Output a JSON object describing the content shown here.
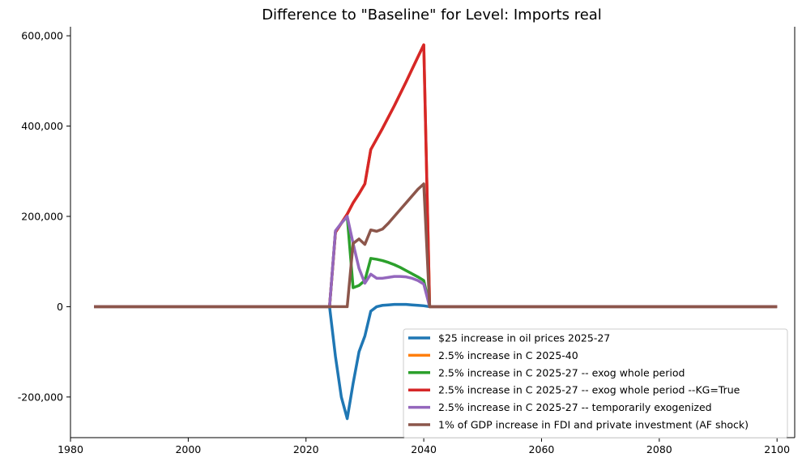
{
  "chart_data": {
    "type": "line",
    "title": "Difference to \"Baseline\" for Level: Imports real",
    "xlabel": "",
    "ylabel": "",
    "xlim": [
      1980,
      2103
    ],
    "ylim": [
      -290000,
      620000
    ],
    "xticks": [
      1980,
      2000,
      2020,
      2040,
      2060,
      2080,
      2100
    ],
    "xtick_labels": [
      "1980",
      "2000",
      "2020",
      "2040",
      "2060",
      "2080",
      "2100"
    ],
    "yticks": [
      -200000,
      0,
      200000,
      400000,
      600000
    ],
    "ytick_labels": [
      "-200,000",
      "0",
      "200,000",
      "400,000",
      "600,000"
    ],
    "grid": false,
    "legend_position": "lower-right",
    "series": [
      {
        "name": "$25 increase in oil prices 2025-27",
        "color": "#1f77b4",
        "x": [
          1984,
          2023,
          2024,
          2025,
          2026,
          2027,
          2028,
          2029,
          2030,
          2031,
          2032,
          2033,
          2034,
          2035,
          2036,
          2037,
          2038,
          2039,
          2040,
          2041,
          2100
        ],
        "y": [
          0,
          0,
          0,
          -110000,
          -200000,
          -248000,
          -170000,
          -100000,
          -65000,
          -10000,
          0,
          3000,
          4000,
          5000,
          5000,
          5000,
          4000,
          3000,
          2000,
          0,
          0
        ]
      },
      {
        "name": "2.5% increase in C 2025-40",
        "color": "#ff7f0e",
        "x": [
          1984,
          2023,
          2024,
          2025,
          2026,
          2027,
          2028,
          2029,
          2030,
          2031,
          2033,
          2035,
          2037,
          2039,
          2040,
          2041,
          2100
        ],
        "y": [
          0,
          0,
          0,
          165000,
          185000,
          205000,
          230000,
          250000,
          272000,
          348000,
          395000,
          445000,
          498000,
          553000,
          580000,
          0,
          0
        ]
      },
      {
        "name": "2.5% increase in C 2025-27 -- exog whole period",
        "color": "#2ca02c",
        "x": [
          1984,
          2023,
          2024,
          2025,
          2026,
          2027,
          2028,
          2029,
          2030,
          2031,
          2032,
          2033,
          2034,
          2035,
          2036,
          2037,
          2038,
          2039,
          2040,
          2041,
          2100
        ],
        "y": [
          0,
          0,
          0,
          165000,
          185000,
          200000,
          42000,
          47000,
          58000,
          107000,
          105000,
          102000,
          98000,
          93000,
          87000,
          80000,
          73000,
          66000,
          58000,
          0,
          0
        ]
      },
      {
        "name": "2.5% increase in C 2025-27 -- exog whole period --KG=True",
        "color": "#d62728",
        "x": [
          1984,
          2023,
          2024,
          2025,
          2026,
          2027,
          2028,
          2029,
          2030,
          2031,
          2033,
          2035,
          2037,
          2039,
          2040,
          2041,
          2100
        ],
        "y": [
          0,
          0,
          0,
          165000,
          185000,
          205000,
          230000,
          250000,
          272000,
          348000,
          395000,
          445000,
          498000,
          553000,
          580000,
          0,
          0
        ]
      },
      {
        "name": "2.5% increase in C 2025-27 -- temporarily exogenized",
        "color": "#9467bd",
        "x": [
          1984,
          2023,
          2024,
          2025,
          2026,
          2027,
          2028,
          2029,
          2030,
          2031,
          2032,
          2033,
          2034,
          2035,
          2036,
          2037,
          2038,
          2039,
          2040,
          2041,
          2100
        ],
        "y": [
          0,
          0,
          0,
          168000,
          185000,
          200000,
          140000,
          85000,
          52000,
          72000,
          63000,
          63000,
          65000,
          67000,
          67000,
          66000,
          63000,
          58000,
          50000,
          0,
          0
        ]
      },
      {
        "name": "1% of GDP increase in FDI and private investment (AF shock)",
        "color": "#8c564b",
        "x": [
          1984,
          2023,
          2024,
          2025,
          2026,
          2027,
          2028,
          2029,
          2030,
          2031,
          2032,
          2033,
          2034,
          2035,
          2036,
          2037,
          2038,
          2039,
          2040,
          2041,
          2100
        ],
        "y": [
          0,
          0,
          0,
          0,
          0,
          0,
          140000,
          150000,
          138000,
          170000,
          167000,
          172000,
          185000,
          200000,
          215000,
          230000,
          245000,
          260000,
          272000,
          0,
          0
        ]
      }
    ]
  }
}
